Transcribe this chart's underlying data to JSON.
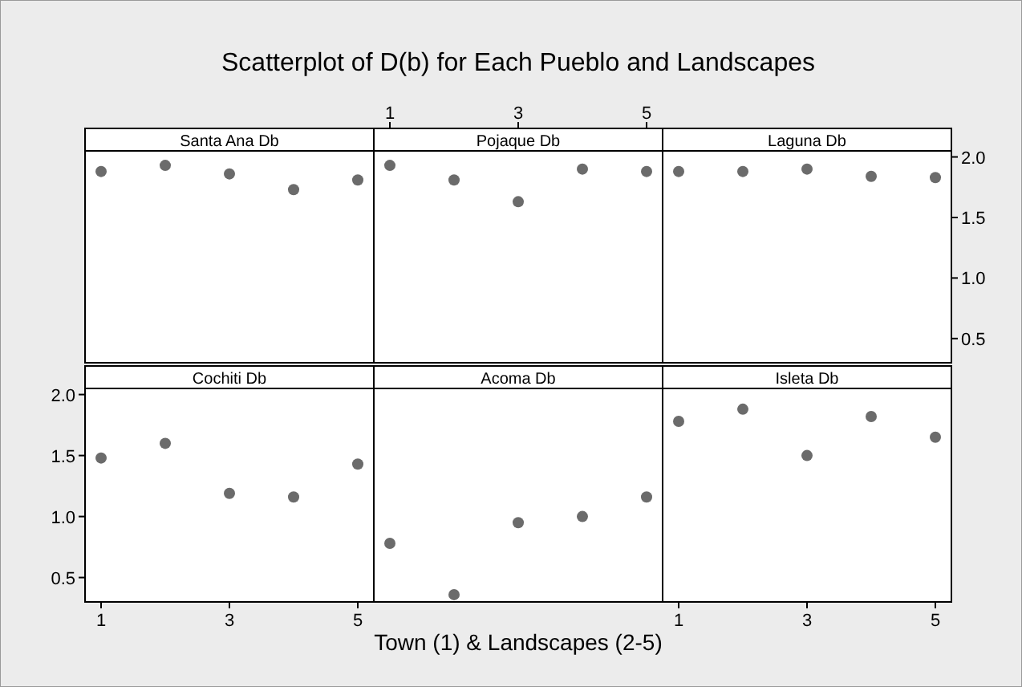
{
  "chart_data": [
    {
      "type": "scatter",
      "title": "Santa Ana Db",
      "annotations": [
        "Scatterplot of D(b) for Each Pueblo and Landscapes"
      ],
      "x": [
        1,
        2,
        3,
        4,
        5
      ],
      "series": [
        {
          "color": "#6b6b6b",
          "values": [
            1.88,
            1.93,
            1.86,
            1.73,
            1.81
          ]
        }
      ],
      "xlim": [
        0.75,
        5.25
      ],
      "ylim": [
        0.3,
        2.05
      ],
      "tick_labels": false,
      "marker": "circle"
    },
    {
      "type": "scatter",
      "title": "Pojaque Db",
      "x": [
        1,
        2,
        3,
        4,
        5
      ],
      "series": [
        {
          "color": "#6b6b6b",
          "values": [
            1.93,
            1.81,
            1.63,
            1.9,
            1.88
          ]
        }
      ],
      "xlim": [
        0.75,
        5.25
      ],
      "ylim": [
        0.3,
        2.05
      ],
      "xticks": [
        1,
        3,
        5
      ],
      "tick_labels": "x",
      "marker": "circle"
    },
    {
      "type": "scatter",
      "title": "Laguna Db",
      "x": [
        1,
        2,
        3,
        4,
        5
      ],
      "series": [
        {
          "color": "#6b6b6b",
          "values": [
            1.88,
            1.88,
            1.9,
            1.84,
            1.83
          ]
        }
      ],
      "xlim": [
        0.75,
        5.25
      ],
      "ylim": [
        0.3,
        2.05
      ],
      "yticks": [
        {
          "value": 0.5,
          "label": "0.5"
        },
        {
          "value": 1,
          "label": "1.0"
        },
        {
          "value": 1.5,
          "label": "1.5"
        },
        {
          "value": 2,
          "label": "2.0"
        }
      ],
      "tick_labels": "y",
      "marker": "circle"
    },
    {
      "type": "scatter",
      "title": "Cochiti Db",
      "x": [
        1,
        2,
        3,
        4,
        5
      ],
      "series": [
        {
          "color": "#6b6b6b",
          "values": [
            1.48,
            1.6,
            1.19,
            1.16,
            1.43
          ]
        }
      ],
      "xlim": [
        0.75,
        5.25
      ],
      "ylim": [
        0.3,
        2.05
      ],
      "xticks": [
        1,
        3,
        5
      ],
      "yticks": [
        {
          "value": 0.5,
          "label": "0.5"
        },
        {
          "value": 1,
          "label": "1.0"
        },
        {
          "value": 1.5,
          "label": "1.5"
        },
        {
          "value": 2,
          "label": "2.0"
        }
      ],
      "marker": "circle"
    },
    {
      "type": "scatter",
      "title": "Acoma Db",
      "xlabel": "Town (1) & Landscapes (2-5)",
      "x": [
        1,
        2,
        3,
        4,
        5
      ],
      "series": [
        {
          "color": "#6b6b6b",
          "values": [
            0.78,
            0.36,
            0.95,
            1.0,
            1.16
          ]
        }
      ],
      "xlim": [
        0.75,
        5.25
      ],
      "ylim": [
        0.3,
        2.05
      ],
      "tick_labels": false,
      "marker": "circle"
    },
    {
      "type": "scatter",
      "title": "Isleta Db",
      "x": [
        1,
        2,
        3,
        4,
        5
      ],
      "series": [
        {
          "color": "#6b6b6b",
          "values": [
            1.78,
            1.88,
            1.5,
            1.82,
            1.65
          ]
        }
      ],
      "xlim": [
        0.75,
        5.25
      ],
      "ylim": [
        0.3,
        2.05
      ],
      "xticks": [
        1,
        3,
        5
      ],
      "tick_labels": "x",
      "marker": "circle"
    }
  ]
}
